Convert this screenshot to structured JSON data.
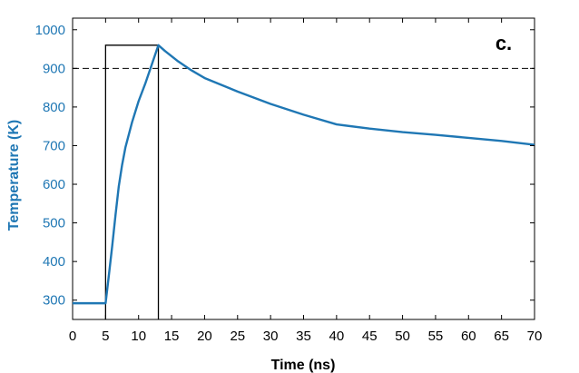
{
  "chart_data": {
    "type": "line",
    "panel_label": "c.",
    "xlabel": "Time (ns)",
    "ylabel": "Temperature (K)",
    "xlim": [
      0,
      70
    ],
    "ylim": [
      250,
      1030
    ],
    "x_ticks": [
      "0",
      "5",
      "10",
      "15",
      "20",
      "25",
      "30",
      "35",
      "40",
      "45",
      "50",
      "55",
      "60",
      "65",
      "70"
    ],
    "y_ticks": [
      "300",
      "400",
      "500",
      "600",
      "700",
      "800",
      "900",
      "1000"
    ],
    "grid": false,
    "legend": "none",
    "series": [
      {
        "x": [
          0,
          5,
          5.5,
          6,
          6.5,
          7,
          7.5,
          8,
          9,
          10,
          11,
          12,
          13,
          14,
          16,
          18,
          20,
          25,
          30,
          35,
          40,
          45,
          50,
          55,
          60,
          65,
          70
        ],
        "y": [
          292,
          292,
          365,
          440,
          520,
          595,
          650,
          695,
          760,
          815,
          860,
          910,
          960,
          945,
          918,
          895,
          875,
          840,
          808,
          780,
          755,
          744,
          735,
          728,
          720,
          712,
          702
        ],
        "color": "#1f77b4"
      }
    ],
    "reference_line": {
      "y": 900,
      "style": "dashed",
      "color": "#000000"
    },
    "pulse_box": {
      "x": [
        5,
        13
      ],
      "y_top": 960,
      "color": "#000000"
    },
    "colors": {
      "line": "#1f77b4",
      "ylabel": "#1f77b4",
      "yticks": "#1f77b4"
    }
  }
}
